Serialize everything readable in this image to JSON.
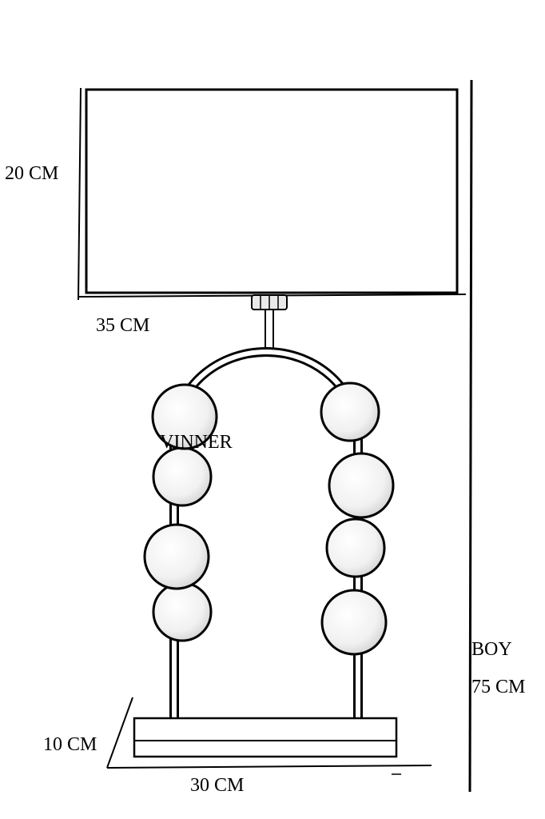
{
  "dimensions": {
    "shade_height": "20 CM",
    "shade_width": "35 CM",
    "base_height": "10 CM",
    "base_width": "30 CM",
    "total_height_title": "BOY",
    "total_height_value": "75 CM"
  },
  "brand": "VINNER",
  "colors": {
    "line": "#000000",
    "background": "#ffffff",
    "shade_fill": "#ffffff",
    "ball_fill": "#f4f4f4"
  }
}
